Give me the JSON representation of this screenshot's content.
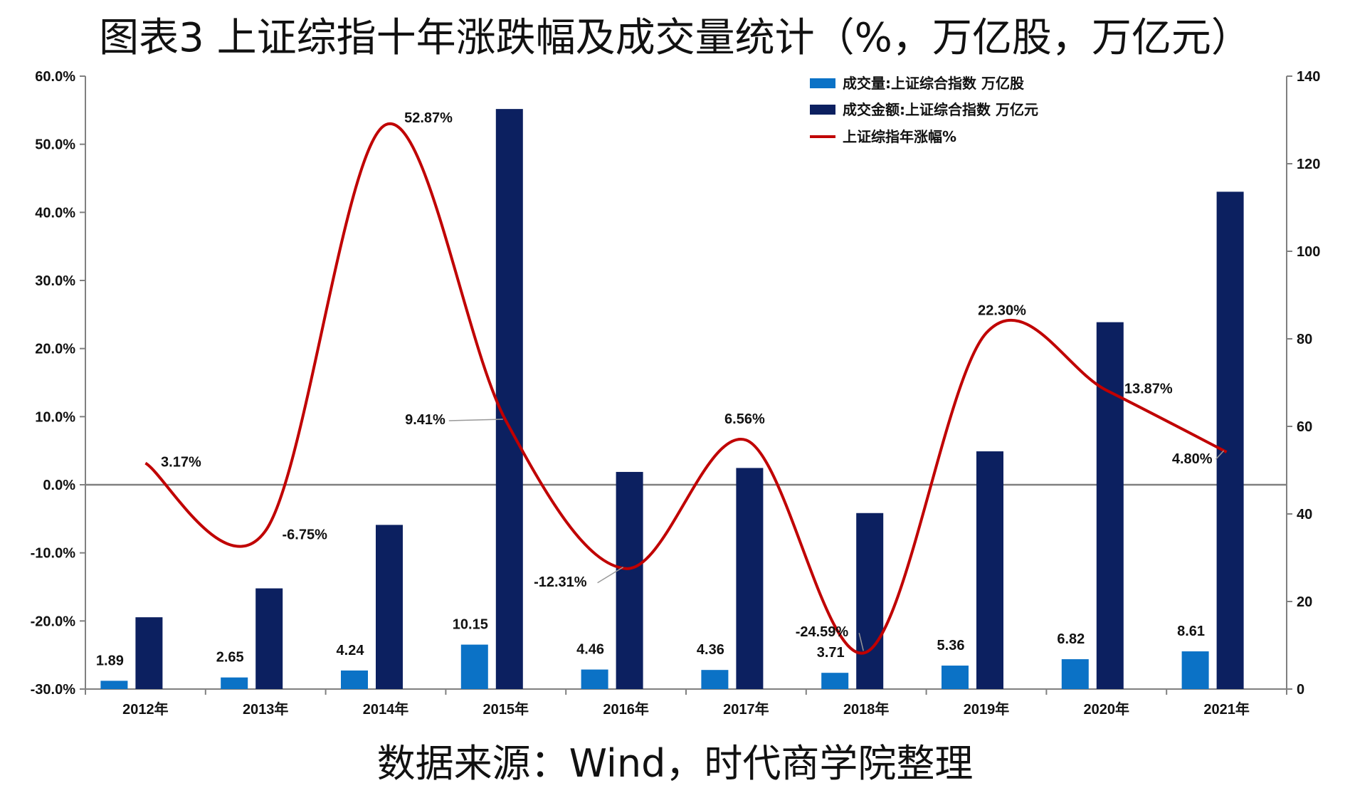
{
  "title": "图表3   上证综指十年涨跌幅及成交量统计（%，万亿股，万亿元）",
  "source": "数据来源：Wind，时代商学院整理",
  "colors": {
    "volume": "#0b72c6",
    "turnover": "#0c2060",
    "line": "#c00000",
    "axis": "#808080"
  },
  "chart_data": {
    "type": "bar+line",
    "categories": [
      "2012年",
      "2013年",
      "2014年",
      "2015年",
      "2016年",
      "2017年",
      "2018年",
      "2019年",
      "2020年",
      "2021年"
    ],
    "left_axis": {
      "range": [
        -30,
        60
      ],
      "ticks": [
        "60.0%",
        "50.0%",
        "40.0%",
        "30.0%",
        "20.0%",
        "10.0%",
        "0.0%",
        "-10.0%",
        "-20.0%",
        "-30.0%"
      ],
      "tick_values": [
        60,
        50,
        40,
        30,
        20,
        10,
        0,
        -10,
        -20,
        -30
      ]
    },
    "right_axis": {
      "range": [
        0,
        140
      ],
      "ticks": [
        "140",
        "120",
        "100",
        "80",
        "60",
        "40",
        "20",
        "0"
      ],
      "tick_values": [
        140,
        120,
        100,
        80,
        60,
        40,
        20,
        0
      ]
    },
    "legend": {
      "position": "top-right",
      "entries": [
        "成交量:上证综合指数 万亿股",
        "成交金额:上证综合指数  万亿元",
        "上证综指年涨幅%"
      ]
    },
    "series": [
      {
        "name": "成交量:上证综合指数 万亿股",
        "type": "bar",
        "axis": "right",
        "values": [
          1.89,
          2.65,
          4.24,
          10.15,
          4.46,
          4.36,
          3.71,
          5.36,
          6.82,
          8.61
        ],
        "labels": [
          "1.89",
          "2.65",
          "4.24",
          "10.15",
          "4.46",
          "4.36",
          "3.71",
          "5.36",
          "6.82",
          "8.61"
        ]
      },
      {
        "name": "成交金额:上证综合指数  万亿元",
        "type": "bar",
        "axis": "right",
        "values": [
          16.4,
          23.0,
          37.5,
          132.5,
          49.6,
          50.5,
          40.2,
          54.3,
          83.8,
          113.6
        ]
      },
      {
        "name": "上证综指年涨幅%",
        "type": "line",
        "axis": "left",
        "values": [
          3.17,
          -6.75,
          52.87,
          9.41,
          -12.31,
          6.56,
          -24.59,
          22.3,
          13.87,
          4.8
        ],
        "labels": [
          "3.17%",
          "-6.75%",
          "52.87%",
          "9.41%",
          "-12.31%",
          "6.56%",
          "-24.59%",
          "22.30%",
          "13.87%",
          "4.80%"
        ]
      }
    ]
  }
}
